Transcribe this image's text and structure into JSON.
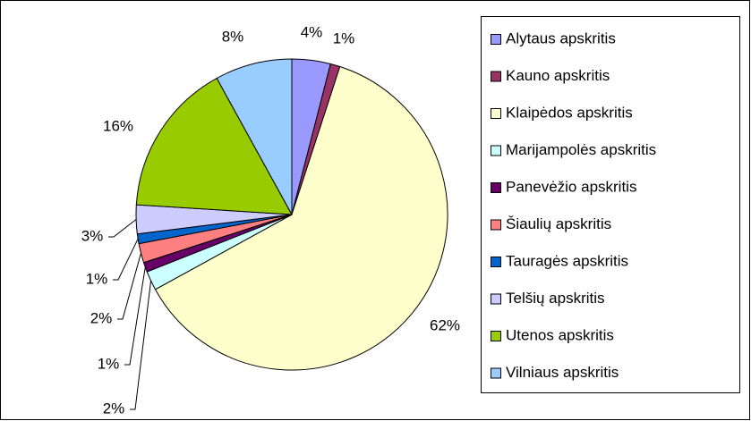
{
  "chart_data": {
    "type": "pie",
    "categories": [
      "Alytaus apskritis",
      "Kauno apskritis",
      "Klaipėdos apskritis",
      "Marijampolės apskritis",
      "Panevėžio apskritis",
      "Šiaulių apskritis",
      "Tauragės apskritis",
      "Telšių apskritis",
      "Utenos apskritis",
      "Vilniaus apskritis"
    ],
    "values": [
      4,
      1,
      62,
      2,
      1,
      2,
      1,
      3,
      16,
      8
    ],
    "value_labels": [
      "4%",
      "1%",
      "62%",
      "2%",
      "1%",
      "2%",
      "1%",
      "3%",
      "16%",
      "8%"
    ],
    "colors": [
      "#9999ff",
      "#993366",
      "#ffffcc",
      "#ccffff",
      "#660066",
      "#ff8080",
      "#0066cc",
      "#ccccff",
      "#99cc00",
      "#99ccff"
    ],
    "legend": "right"
  }
}
